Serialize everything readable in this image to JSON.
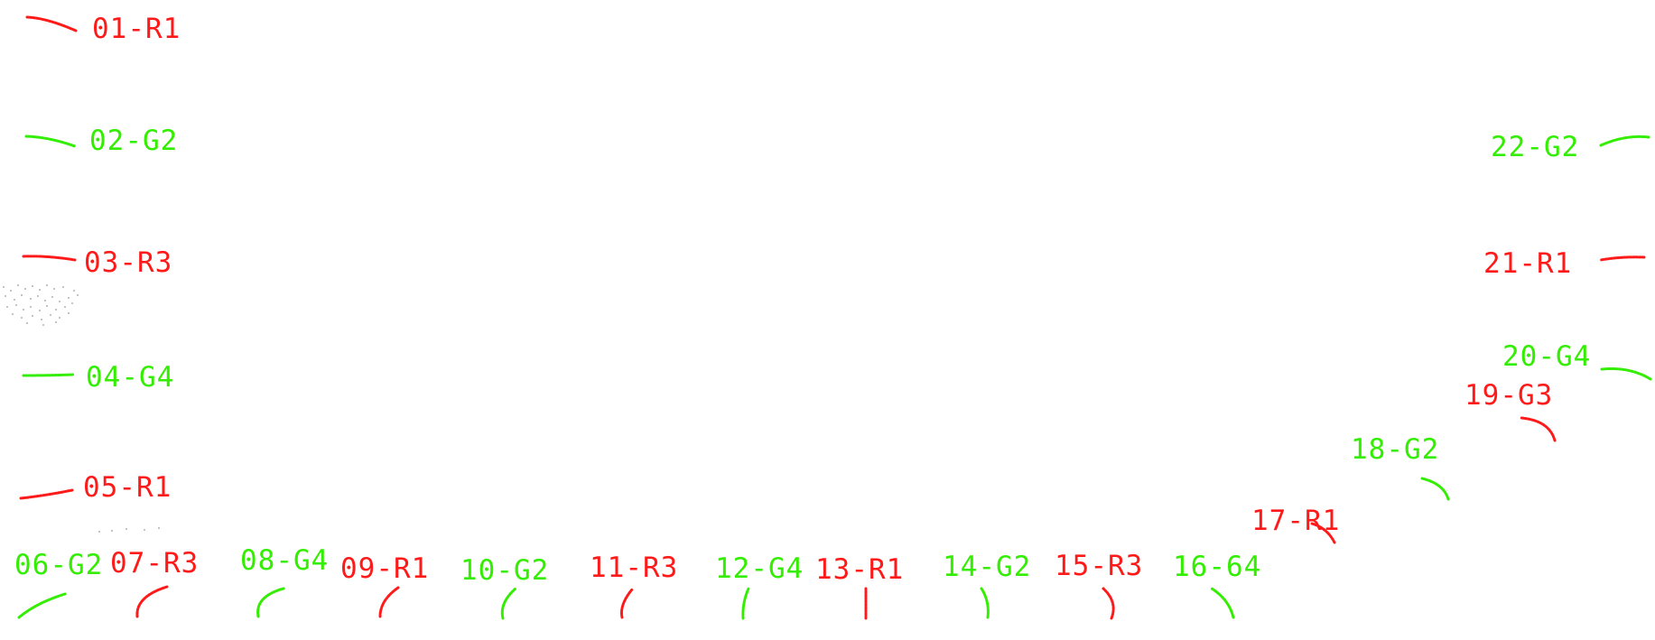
{
  "colors": {
    "red": "#ff1a1a",
    "green": "#33ee00",
    "noise": "#999999"
  },
  "markers": [
    {
      "id": "m01",
      "label": "01-R1",
      "color": "red"
    },
    {
      "id": "m02",
      "label": "02-G2",
      "color": "green"
    },
    {
      "id": "m03",
      "label": "03-R3",
      "color": "red"
    },
    {
      "id": "m04",
      "label": "04-G4",
      "color": "green"
    },
    {
      "id": "m05",
      "label": "05-R1",
      "color": "red"
    },
    {
      "id": "m06",
      "label": "06-G2",
      "color": "green"
    },
    {
      "id": "m07",
      "label": "07-R3",
      "color": "red"
    },
    {
      "id": "m08",
      "label": "08-G4",
      "color": "green"
    },
    {
      "id": "m09",
      "label": "09-R1",
      "color": "red"
    },
    {
      "id": "m10",
      "label": "10-G2",
      "color": "green"
    },
    {
      "id": "m11",
      "label": "11-R3",
      "color": "red"
    },
    {
      "id": "m12",
      "label": "12-G4",
      "color": "green"
    },
    {
      "id": "m13",
      "label": "13-R1",
      "color": "red"
    },
    {
      "id": "m14",
      "label": "14-G2",
      "color": "green"
    },
    {
      "id": "m15",
      "label": "15-R3",
      "color": "red"
    },
    {
      "id": "m16",
      "label": "16-64",
      "color": "green"
    },
    {
      "id": "m17",
      "label": "17-R1",
      "color": "red"
    },
    {
      "id": "m18",
      "label": "18-G2",
      "color": "green"
    },
    {
      "id": "m19",
      "label": "19-G3",
      "color": "red"
    },
    {
      "id": "m20",
      "label": "20-G4",
      "color": "green"
    },
    {
      "id": "m21",
      "label": "21-R1",
      "color": "red"
    },
    {
      "id": "m22",
      "label": "22-G2",
      "color": "green"
    }
  ]
}
